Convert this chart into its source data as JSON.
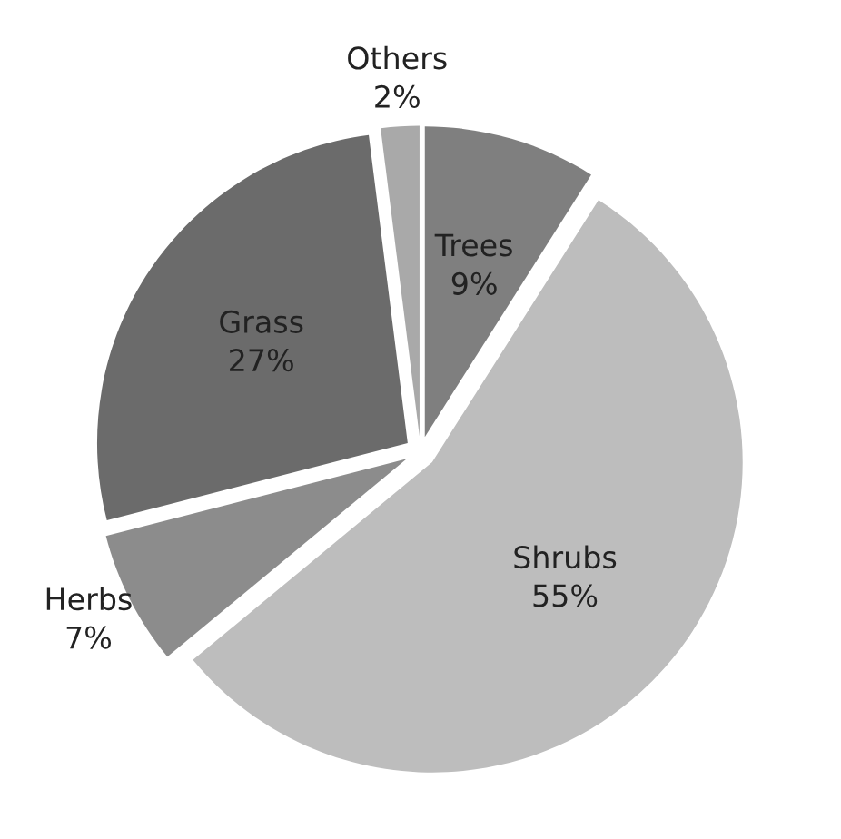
{
  "chart_data": {
    "type": "pie",
    "categories": [
      "Trees",
      "Shrubs",
      "Herbs",
      "Grass",
      "Others"
    ],
    "values": [
      9,
      55,
      7,
      27,
      2
    ],
    "value_labels": [
      "9%",
      "55%",
      "7%",
      "27%",
      "2%"
    ],
    "colors": [
      "#7f7f7f",
      "#bdbdbd",
      "#8c8c8c",
      "#6b6b6b",
      "#a9a9a9"
    ]
  }
}
